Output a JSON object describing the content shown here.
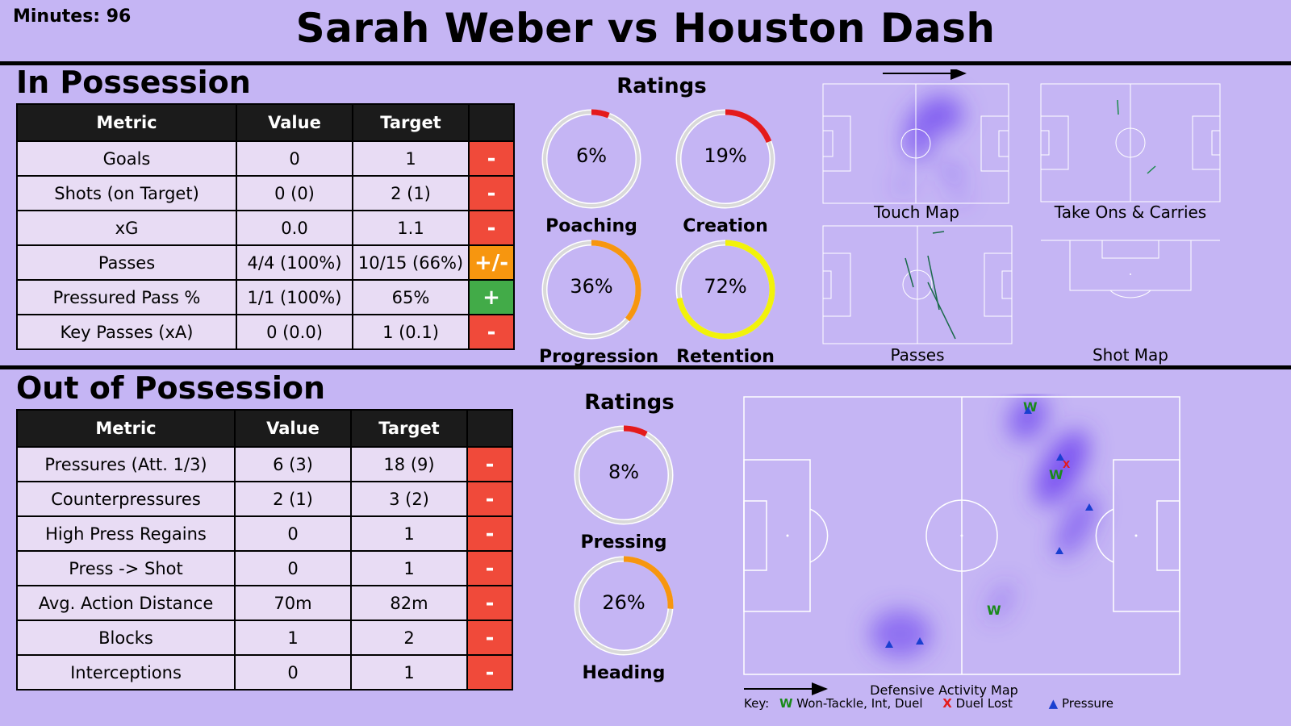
{
  "header": {
    "minutes": "Minutes: 96",
    "title": "Sarah Weber vs Houston Dash"
  },
  "in_possession": {
    "title": "In Possession",
    "columns": [
      "Metric",
      "Value",
      "Target",
      ""
    ],
    "rows": [
      {
        "metric": "Goals",
        "value": "0",
        "target": "1",
        "status": "-"
      },
      {
        "metric": "Shots (on Target)",
        "value": "0 (0)",
        "target": "2 (1)",
        "status": "-"
      },
      {
        "metric": "xG",
        "value": "0.0",
        "target": "1.1",
        "status": "-"
      },
      {
        "metric": "Passes",
        "value": "4/4 (100%)",
        "target": "10/15 (66%)",
        "status": "+/-"
      },
      {
        "metric": "Pressured Pass %",
        "value": "1/1 (100%)",
        "target": "65%",
        "status": "+"
      },
      {
        "metric": "Key Passes (xA)",
        "value": "0 (0.0)",
        "target": "1 (0.1)",
        "status": "-"
      }
    ],
    "ratings_title": "Ratings",
    "ratings": [
      {
        "label": "Poaching",
        "text": "6%",
        "value": 0.06,
        "color": "#e41a1c"
      },
      {
        "label": "Creation",
        "text": "19%",
        "value": 0.19,
        "color": "#e41a1c"
      },
      {
        "label": "Progression",
        "text": "36%",
        "value": 0.36,
        "color": "#f7960f"
      },
      {
        "label": "Retention",
        "text": "72%",
        "value": 0.72,
        "color": "#f2f20a"
      }
    ],
    "maps": {
      "touch": "Touch Map",
      "takeons": "Take Ons & Carries",
      "passes": "Passes",
      "shots": "Shot Map"
    }
  },
  "out_of_possession": {
    "title": "Out of Possession",
    "columns": [
      "Metric",
      "Value",
      "Target",
      ""
    ],
    "rows": [
      {
        "metric": "Pressures (Att. 1/3)",
        "value": "6 (3)",
        "target": "18 (9)",
        "status": "-"
      },
      {
        "metric": "Counterpressures",
        "value": "2 (1)",
        "target": "3 (2)",
        "status": "-"
      },
      {
        "metric": "High Press Regains",
        "value": "0",
        "target": "1",
        "status": "-"
      },
      {
        "metric": "Press -> Shot",
        "value": "0",
        "target": "1",
        "status": "-"
      },
      {
        "metric": "Avg. Action Distance",
        "value": "70m",
        "target": "82m",
        "status": "-"
      },
      {
        "metric": "Blocks",
        "value": "1",
        "target": "2",
        "status": "-"
      },
      {
        "metric": "Interceptions",
        "value": "0",
        "target": "1",
        "status": "-"
      }
    ],
    "ratings_title": "Ratings",
    "ratings": [
      {
        "label": "Pressing",
        "text": "8%",
        "value": 0.08,
        "color": "#e41a1c"
      },
      {
        "label": "Heading",
        "text": "26%",
        "value": 0.26,
        "color": "#f7960f"
      }
    ],
    "map_title": "Defensive Activity Map",
    "key": {
      "prefix": "Key:",
      "won": "Won-Tackle, Int, Duel",
      "lost": "Duel Lost",
      "pressure": "Pressure"
    }
  },
  "colors": {
    "background": "#c5b5f4",
    "status_minus": "#f04a3a",
    "status_mixed": "#f7960f",
    "status_plus": "#42ab48",
    "heat": "#6a3ff0",
    "won_marker": "#1a8a1a",
    "lost_marker": "#e41a1c",
    "pressure_marker": "#1a3fd0"
  }
}
